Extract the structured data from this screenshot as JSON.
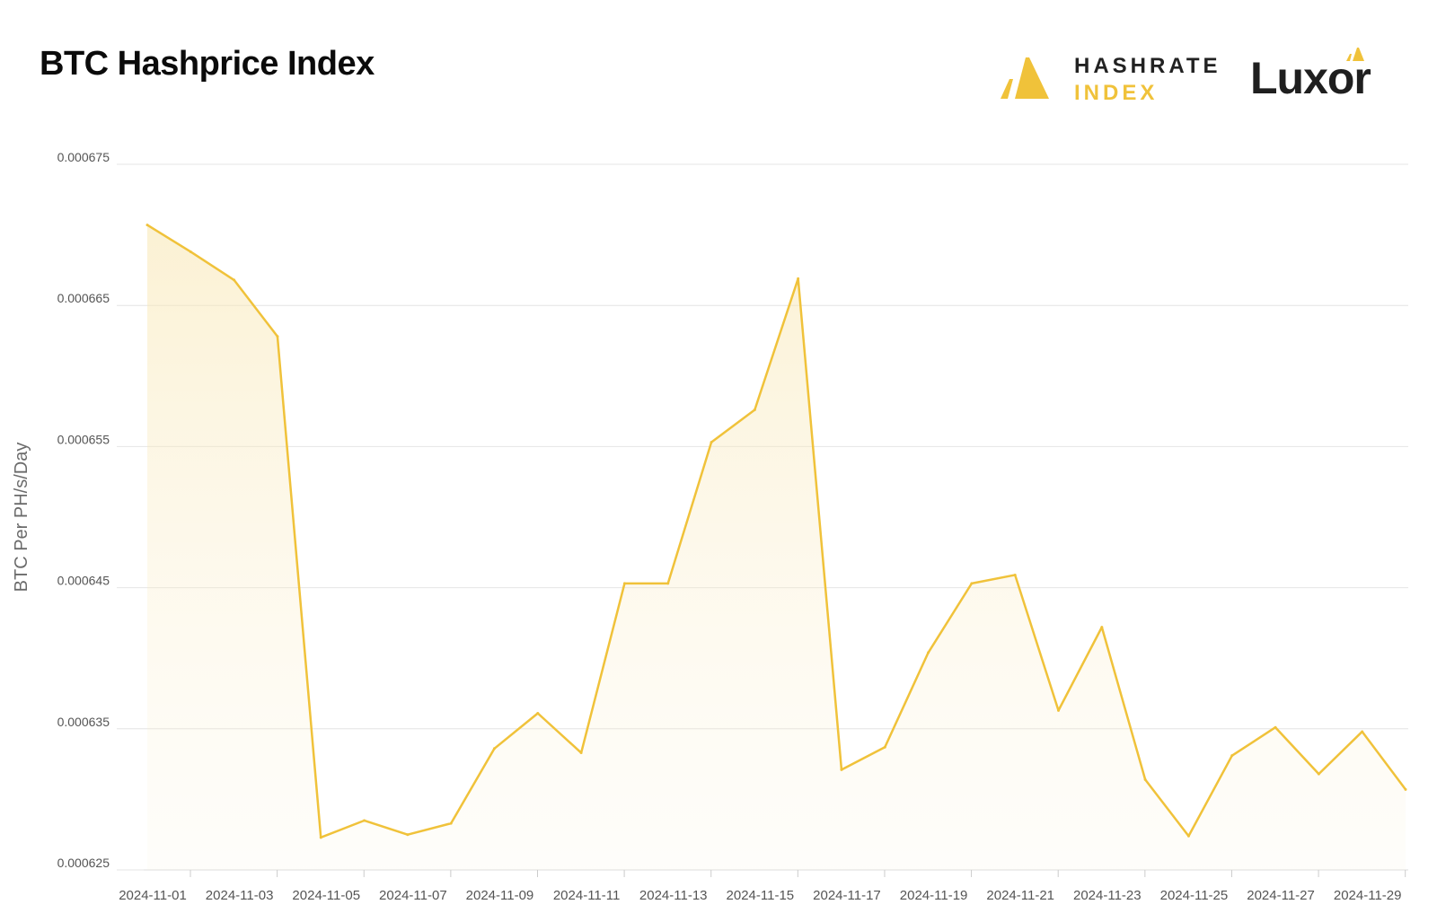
{
  "title": "BTC Hashprice Index",
  "brand": {
    "hashrate_line1": "HASHRATE",
    "hashrate_line2": "INDEX",
    "luxor": "Luxor",
    "accent_color": "#f0c23a"
  },
  "chart_data": {
    "type": "area",
    "title": "BTC Hashprice Index",
    "xlabel": "",
    "ylabel": "BTC Per PH/s/Day",
    "ylim": [
      0.000625,
      0.000675
    ],
    "yticks": [
      "0.000625",
      "0.000635",
      "0.000645",
      "0.000655",
      "0.000665",
      "0.000675"
    ],
    "xticks": [
      "2024-11-01",
      "2024-11-03",
      "2024-11-05",
      "2024-11-07",
      "2024-11-09",
      "2024-11-11",
      "2024-11-13",
      "2024-11-15",
      "2024-11-17",
      "2024-11-19",
      "2024-11-21",
      "2024-11-23",
      "2024-11-25",
      "2024-11-27",
      "2024-11-29"
    ],
    "grid": true,
    "line_color": "#f0c23a",
    "series": [
      {
        "x": [
          "2024-11-01",
          "2024-11-02",
          "2024-11-03",
          "2024-11-04",
          "2024-11-05",
          "2024-11-06",
          "2024-11-07",
          "2024-11-08",
          "2024-11-09",
          "2024-11-10",
          "2024-11-11",
          "2024-11-12",
          "2024-11-13",
          "2024-11-14",
          "2024-11-15",
          "2024-11-16",
          "2024-11-17",
          "2024-11-18",
          "2024-11-19",
          "2024-11-20",
          "2024-11-21",
          "2024-11-22",
          "2024-11-23",
          "2024-11-24",
          "2024-11-25",
          "2024-11-26",
          "2024-11-27",
          "2024-11-28",
          "2024-11-29",
          "2024-11-30"
        ],
        "values": [
          0.0006707,
          0.0006688,
          0.0006668,
          0.0006628,
          0.0006273,
          0.0006285,
          0.0006275,
          0.0006283,
          0.0006336,
          0.0006361,
          0.0006333,
          0.0006453,
          0.0006453,
          0.0006553,
          0.0006576,
          0.0006669,
          0.0006321,
          0.0006337,
          0.0006404,
          0.0006453,
          0.0006459,
          0.0006363,
          0.0006422,
          0.0006314,
          0.0006274,
          0.0006331,
          0.0006351,
          0.0006318,
          0.0006348,
          0.0006307
        ]
      }
    ]
  }
}
